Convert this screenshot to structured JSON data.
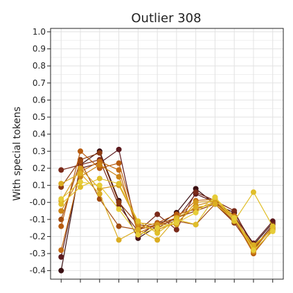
{
  "chart_data": {
    "type": "line",
    "title": "Outlier 308",
    "xlabel": "",
    "ylabel": "With special tokens",
    "ylim": [
      -0.45,
      1.02
    ],
    "yticks": [
      1.0,
      0.9,
      0.8,
      0.7,
      0.6,
      0.5,
      0.4,
      0.3,
      0.2,
      0.1,
      0.0,
      -0.1,
      -0.2,
      -0.3,
      -0.4
    ],
    "ytick_labels": [
      "1.0",
      "0.9",
      "0.8",
      "0.7",
      "0.6",
      "0.5",
      "0.4",
      "0.3",
      "0.2",
      "0.1",
      "-0.0",
      "-0.1",
      "-0.2",
      "-0.3",
      "-0.4"
    ],
    "x": [
      0,
      1,
      2,
      3,
      4,
      5,
      6,
      7,
      8,
      9,
      10,
      11
    ],
    "xlim": [
      -0.55,
      11.55
    ],
    "grid": true,
    "legend": "none",
    "series": [
      {
        "color": "#3a0f12",
        "values": [
          -0.4,
          0.22,
          0.3,
          0.01,
          -0.21,
          -0.14,
          -0.06,
          0.08,
          -0.01,
          -0.06,
          -0.25,
          -0.12
        ]
      },
      {
        "color": "#5c1a1e",
        "values": [
          -0.32,
          0.2,
          0.23,
          0.31,
          -0.2,
          -0.12,
          -0.1,
          0.05,
          0.0,
          -0.08,
          -0.24,
          -0.11
        ]
      },
      {
        "color": "#7a2a1a",
        "values": [
          0.19,
          0.22,
          0.25,
          -0.02,
          -0.17,
          -0.07,
          -0.16,
          0.06,
          0.01,
          -0.05,
          -0.27,
          -0.13
        ]
      },
      {
        "color": "#8b3a12",
        "values": [
          0.09,
          0.25,
          0.29,
          0.0,
          -0.13,
          -0.15,
          -0.09,
          -0.05,
          -0.01,
          -0.12,
          -0.28,
          -0.14
        ]
      },
      {
        "color": "#a04a10",
        "values": [
          -0.1,
          0.24,
          0.02,
          -0.14,
          -0.16,
          -0.13,
          -0.11,
          -0.13,
          -0.01,
          -0.11,
          -0.26,
          -0.15
        ]
      },
      {
        "color": "#b85c0f",
        "values": [
          -0.14,
          0.3,
          0.2,
          0.23,
          -0.15,
          -0.12,
          -0.07,
          -0.04,
          0.0,
          -0.1,
          -0.3,
          -0.16
        ]
      },
      {
        "color": "#c46d12",
        "values": [
          -0.28,
          0.18,
          0.24,
          0.19,
          -0.18,
          -0.13,
          -0.09,
          0.01,
          0.02,
          -0.08,
          -0.27,
          -0.15
        ]
      },
      {
        "color": "#cc8516",
        "values": [
          -0.05,
          0.15,
          0.22,
          0.15,
          -0.14,
          -0.16,
          -0.12,
          -0.02,
          0.01,
          -0.09,
          -0.29,
          -0.16
        ]
      },
      {
        "color": "#d49a1c",
        "values": [
          0.01,
          0.2,
          0.08,
          0.1,
          -0.12,
          -0.13,
          -0.13,
          0.0,
          0.01,
          -0.1,
          -0.26,
          -0.15
        ]
      },
      {
        "color": "#dbad22",
        "values": [
          0.11,
          0.17,
          0.05,
          -0.22,
          -0.16,
          -0.22,
          -0.09,
          -0.03,
          -0.01,
          -0.1,
          -0.25,
          -0.16
        ]
      },
      {
        "color": "#e0be2a",
        "values": [
          -0.01,
          0.09,
          0.14,
          0.11,
          -0.11,
          -0.18,
          -0.1,
          -0.13,
          0.03,
          -0.11,
          0.06,
          -0.14
        ]
      },
      {
        "color": "#e6cc38",
        "values": [
          0.02,
          0.12,
          0.1,
          -0.04,
          -0.19,
          -0.15,
          -0.12,
          -0.06,
          0.03,
          -0.09,
          -0.28,
          -0.17
        ]
      }
    ]
  }
}
